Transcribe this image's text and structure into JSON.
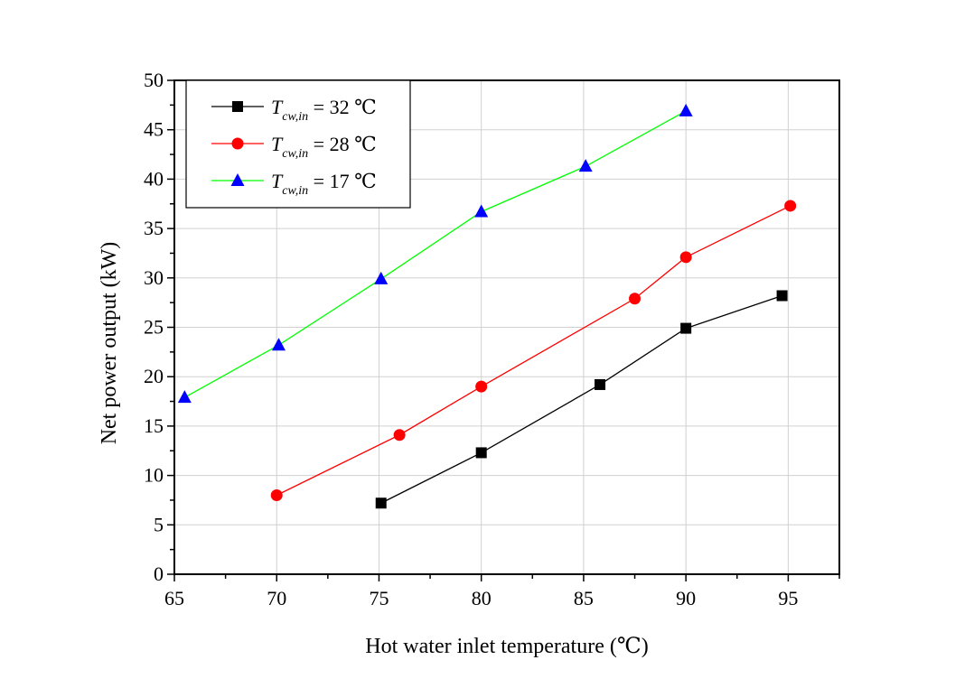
{
  "chart_data": {
    "type": "line",
    "title": "",
    "xlabel": "Hot water inlet temperature (℃)",
    "ylabel": "Net power output (kW)",
    "xlim": [
      65,
      97.5
    ],
    "ylim": [
      0,
      50
    ],
    "xticks": [
      65,
      70,
      75,
      80,
      85,
      90,
      95
    ],
    "yticks": [
      0,
      5,
      10,
      15,
      20,
      25,
      30,
      35,
      40,
      45,
      50
    ],
    "grid": true,
    "legend_position": "top-left",
    "series": [
      {
        "name_symbol": "T",
        "name_subscript": "cw,in",
        "name_suffix": " = 32 ℃",
        "color": "#000000",
        "marker": "square",
        "x": [
          75.1,
          80.0,
          85.8,
          90.0,
          94.7
        ],
        "y": [
          7.2,
          12.3,
          19.2,
          24.9,
          28.2
        ]
      },
      {
        "name_symbol": "T",
        "name_subscript": "cw,in",
        "name_suffix": " = 28 ℃",
        "color": "#ff0000",
        "marker": "circle",
        "x": [
          70.0,
          76.0,
          80.0,
          87.5,
          90.0,
          95.1
        ],
        "y": [
          8.0,
          14.1,
          19.0,
          27.9,
          32.1,
          37.3
        ]
      },
      {
        "name_symbol": "T",
        "name_subscript": "cw,in",
        "name_suffix": " = 17 ℃",
        "color": "#00ff00",
        "marker_color": "#0000ff",
        "marker": "triangle",
        "x": [
          65.5,
          70.1,
          75.1,
          80.0,
          85.1,
          90.0
        ],
        "y": [
          17.9,
          23.2,
          29.9,
          36.7,
          41.3,
          46.9
        ]
      }
    ]
  }
}
